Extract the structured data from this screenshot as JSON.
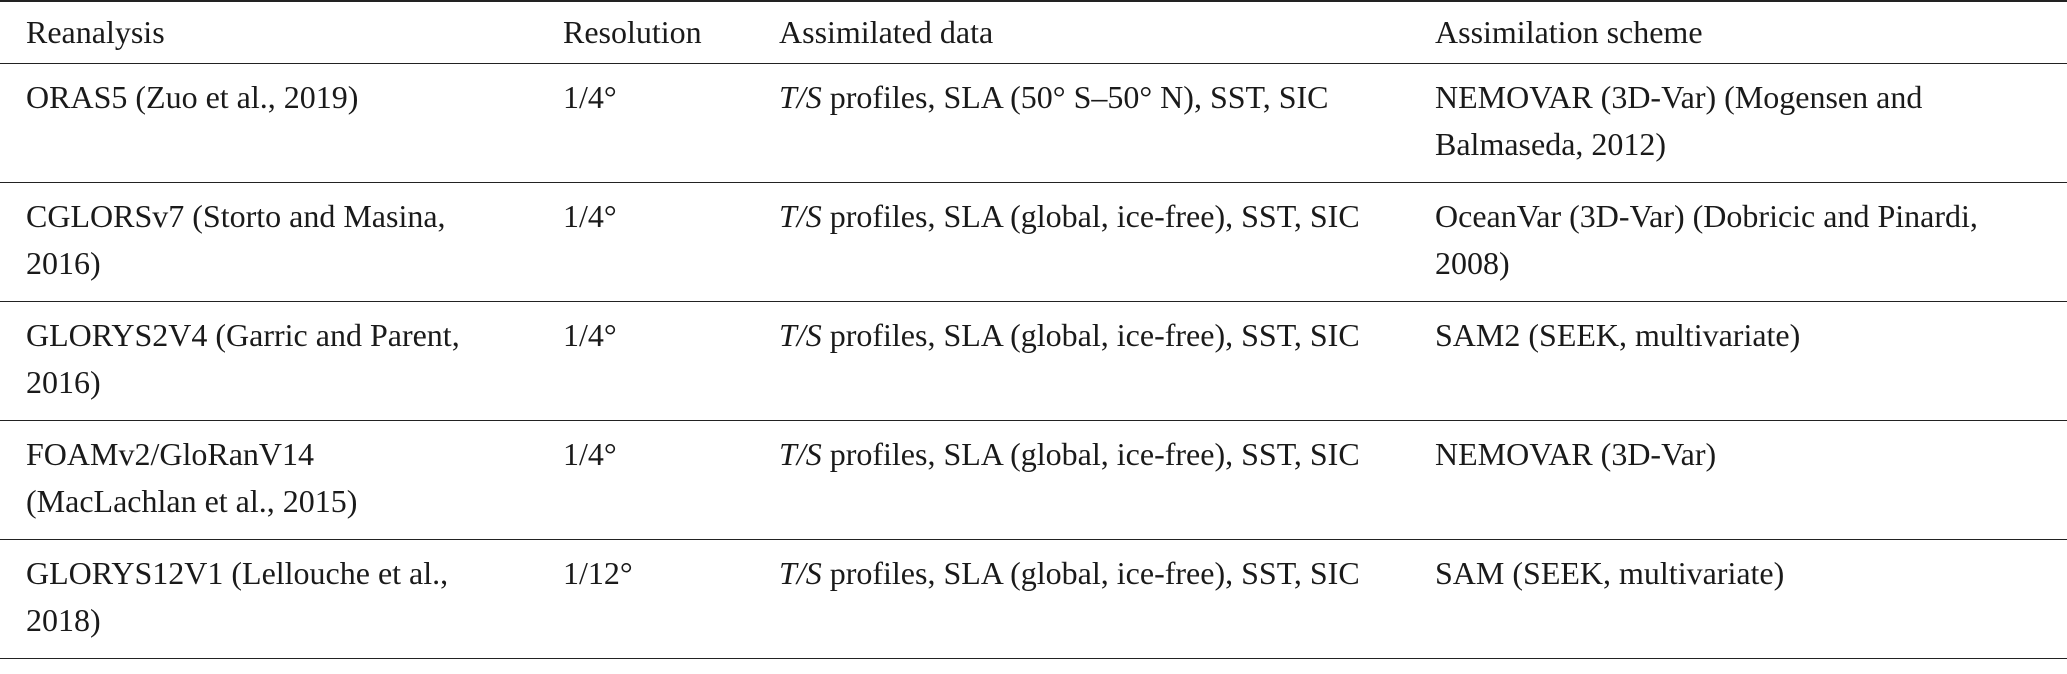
{
  "table": {
    "headers": [
      "Reanalysis",
      "Resolution",
      "Assimilated data",
      "Assimilation scheme"
    ],
    "rows": [
      [
        "ORAS5 (Zuo et al., 2019)",
        "1/4°",
        {
          "italic": "T/S",
          "text": "profiles, SLA (50° S–50° N), SST, SIC"
        },
        "NEMOVAR (3D-Var) (Mogensen and Balmaseda, 2012)"
      ],
      [
        "CGLORSv7 (Storto and Masina, 2016)",
        "1/4°",
        {
          "italic": "T/S",
          "text": "profiles, SLA (global, ice-free), SST, SIC"
        },
        "OceanVar (3D-Var) (Dobricic and Pinardi, 2008)"
      ],
      [
        "GLORYS2V4 (Garric and Parent, 2016)",
        "1/4°",
        {
          "italic": "T/S",
          "text": "profiles, SLA (global, ice-free), SST, SIC"
        },
        "SAM2 (SEEK, multivariate)"
      ],
      [
        "FOAMv2/GloRanV14 (MacLachlan et al., 2015)",
        "1/4°",
        {
          "italic": "T/S",
          "text": "profiles, SLA (global, ice-free), SST, SIC"
        },
        "NEMOVAR (3D-Var)"
      ],
      [
        "GLORYS12V1 (Lellouche et al., 2018)",
        "1/12°",
        {
          "italic": "T/S",
          "text": "profiles, SLA (global, ice-free), SST, SIC"
        },
        "SAM (SEEK, multivariate)"
      ]
    ]
  }
}
